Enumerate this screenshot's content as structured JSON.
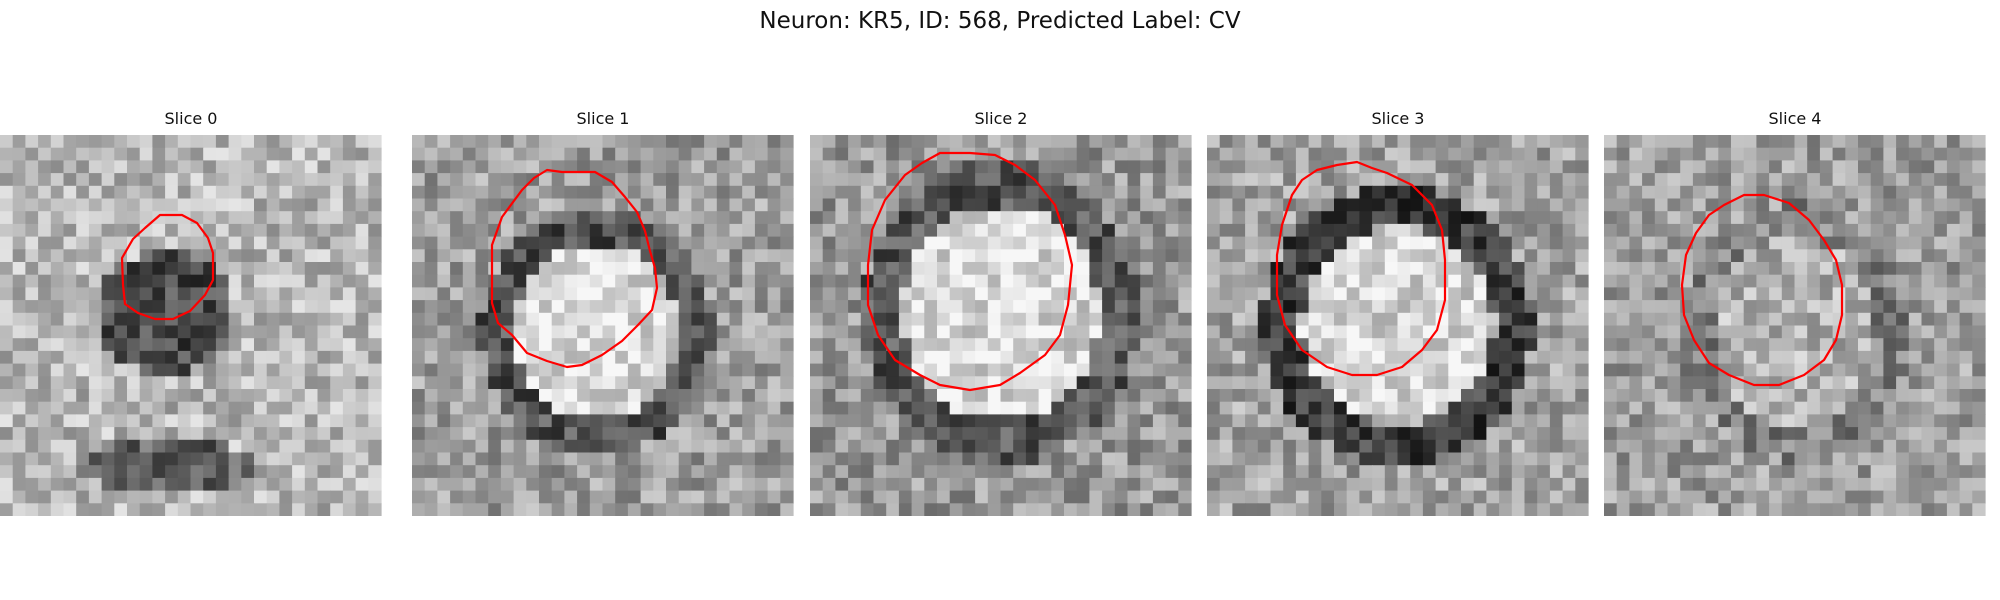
{
  "figure": {
    "title": "Neuron: KR5, ID: 568, Predicted Label: CV"
  },
  "panels": [
    {
      "title": "Slice 0"
    },
    {
      "title": "Slice 1"
    },
    {
      "title": "Slice 2"
    },
    {
      "title": "Slice 3"
    },
    {
      "title": "Slice 4"
    }
  ],
  "colors": {
    "contour": "#ff0000",
    "background": "#ffffff"
  }
}
